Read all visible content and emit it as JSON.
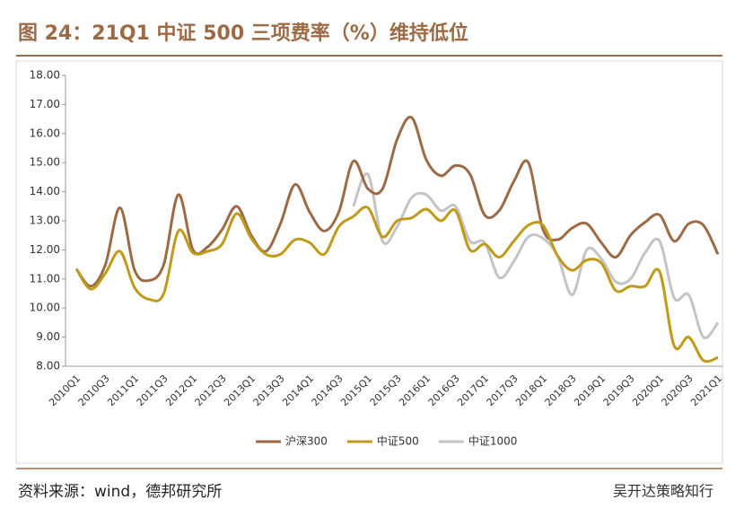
{
  "chart_data": {
    "type": "line",
    "title": "图 24：21Q1 中证 500 三项费率（%）维持低位",
    "source": "资料来源：wind，德邦研究所",
    "watermark": "吴开达策略知行",
    "categories": [
      "2010Q1",
      null,
      "2010Q3",
      null,
      "2011Q1",
      null,
      "2011Q3",
      null,
      "2012Q1",
      null,
      "2012Q3",
      null,
      "2013Q1",
      null,
      "2013Q3",
      null,
      "2014Q1",
      null,
      "2014Q3",
      null,
      "2015Q1",
      null,
      "2015Q3",
      null,
      "2016Q1",
      null,
      "2016Q3",
      null,
      "2017Q1",
      null,
      "2017Q3",
      null,
      "2018Q1",
      null,
      "2018Q3",
      null,
      "2019Q1",
      null,
      "2019Q3",
      null,
      "2020Q1",
      null,
      "2020Q3",
      null,
      "2021Q1"
    ],
    "series": [
      {
        "name": "沪深300",
        "color": "#9c6b46",
        "values": [
          11.35,
          10.75,
          11.5,
          13.45,
          11.3,
          10.95,
          11.5,
          13.9,
          12.0,
          12.1,
          12.7,
          13.5,
          12.5,
          11.95,
          12.9,
          14.25,
          13.3,
          12.65,
          13.3,
          15.05,
          14.1,
          14.1,
          15.8,
          16.55,
          15.1,
          14.55,
          14.9,
          14.6,
          13.2,
          13.35,
          14.35,
          15.0,
          12.7,
          12.35,
          12.75,
          12.9,
          12.25,
          11.75,
          12.5,
          12.95,
          13.2,
          12.3,
          12.9,
          12.85,
          11.85
        ]
      },
      {
        "name": "中证500",
        "color": "#c09a1a",
        "values": [
          11.35,
          10.65,
          11.2,
          11.95,
          10.7,
          10.3,
          10.5,
          12.65,
          11.9,
          11.95,
          12.2,
          13.25,
          12.4,
          11.85,
          11.85,
          12.35,
          12.25,
          11.85,
          12.8,
          13.15,
          13.45,
          12.45,
          13.0,
          13.1,
          13.4,
          13.0,
          13.35,
          12.0,
          12.2,
          11.75,
          12.3,
          12.85,
          12.85,
          11.8,
          11.3,
          11.65,
          11.55,
          10.6,
          10.75,
          10.75,
          11.25,
          8.7,
          9.0,
          8.2,
          8.3
        ]
      },
      {
        "name": "中证1000",
        "color": "#c4c4c4",
        "values": [
          null,
          null,
          null,
          null,
          null,
          null,
          null,
          null,
          null,
          null,
          null,
          null,
          null,
          null,
          null,
          null,
          null,
          null,
          null,
          13.5,
          14.6,
          12.3,
          12.8,
          13.8,
          13.9,
          13.35,
          13.5,
          12.3,
          12.25,
          11.05,
          11.6,
          12.45,
          12.4,
          11.8,
          10.45,
          12.0,
          11.7,
          10.9,
          11.0,
          11.9,
          12.3,
          10.35,
          10.45,
          9.0,
          9.5
        ]
      }
    ],
    "ylim": [
      8,
      18
    ],
    "yticks": [
      {
        "value": 8,
        "label": "8.00"
      },
      {
        "value": 9,
        "label": "9.00"
      },
      {
        "value": 10,
        "label": "10.00"
      },
      {
        "value": 11,
        "label": "11.00"
      },
      {
        "value": 12,
        "label": "12.00"
      },
      {
        "value": 13,
        "label": "13.00"
      },
      {
        "value": 14,
        "label": "14.00"
      },
      {
        "value": 15,
        "label": "15.00"
      },
      {
        "value": 16,
        "label": "16.00"
      },
      {
        "value": 17,
        "label": "17.00"
      },
      {
        "value": 18,
        "label": "18.00"
      }
    ],
    "legend": "bottom"
  }
}
